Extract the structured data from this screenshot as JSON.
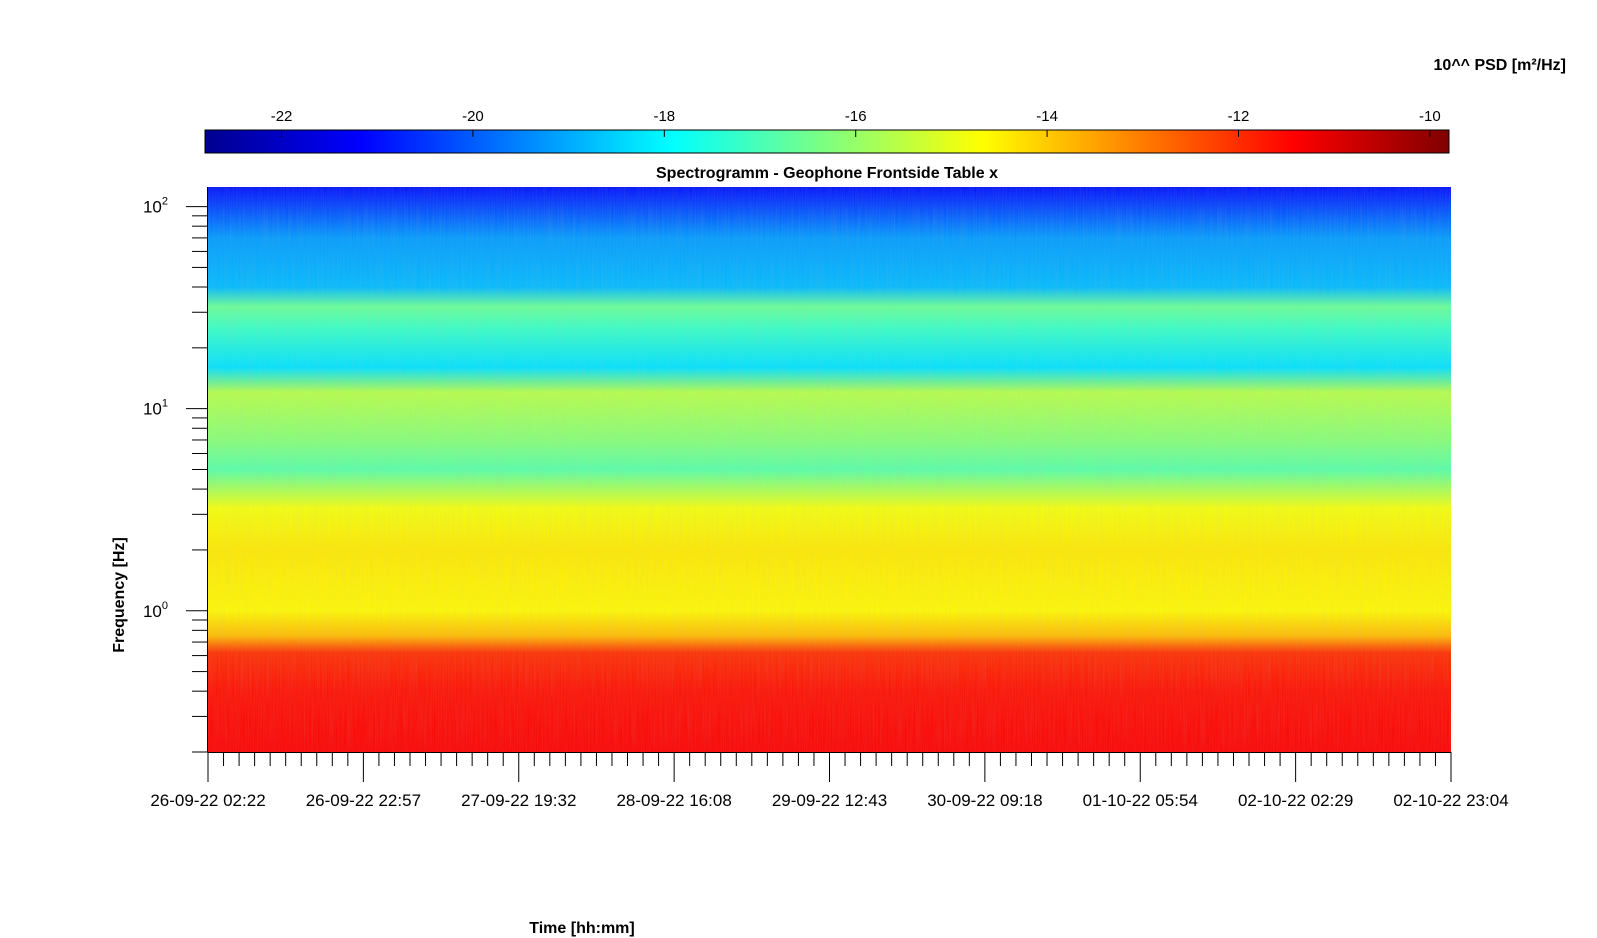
{
  "chart_data": {
    "type": "heatmap",
    "title": "Spectrogramm - Geophone Frontside Table x",
    "xlabel": "Time [hh:mm]",
    "ylabel": "Frequency [Hz]",
    "colorbar": {
      "label": "10^^ PSD [m²/Hz]",
      "ticks": [
        -22,
        -20,
        -18,
        -16,
        -14,
        -12,
        -10
      ],
      "tick_labels": [
        "-22",
        "-20",
        "-18",
        "-16",
        "-14",
        "-12",
        "-10"
      ],
      "range": [
        -22.8,
        -9.8
      ],
      "colormap": "jet"
    },
    "x_ticks": [
      "26-09-22 02:22",
      "26-09-22 22:57",
      "27-09-22 19:32",
      "28-09-22 16:08",
      "29-09-22 12:43",
      "30-09-22 09:18",
      "01-10-22 05:54",
      "02-10-22 02:29",
      "02-10-22 23:04"
    ],
    "xlim": [
      "26-09-22 02:22",
      "02-10-22 23:04"
    ],
    "y_scale": "log",
    "y_ticks": [
      1,
      10,
      100
    ],
    "y_tick_labels": [
      {
        "base": "10",
        "exp": "0"
      },
      {
        "base": "10",
        "exp": "1"
      },
      {
        "base": "10",
        "exp": "2"
      }
    ],
    "ylim": [
      0.2,
      125
    ],
    "frequency_profile": [
      {
        "f": 0.2,
        "psd": -11.4
      },
      {
        "f": 0.4,
        "psd": -11.6
      },
      {
        "f": 0.62,
        "psd": -12.0
      },
      {
        "f": 0.75,
        "psd": -13.8
      },
      {
        "f": 1.0,
        "psd": -14.6
      },
      {
        "f": 2.0,
        "psd": -14.4
      },
      {
        "f": 3.2,
        "psd": -14.8
      },
      {
        "f": 5.0,
        "psd": -16.8
      },
      {
        "f": 7.0,
        "psd": -16.2
      },
      {
        "f": 12.0,
        "psd": -15.6
      },
      {
        "f": 16.0,
        "psd": -18.3
      },
      {
        "f": 25.0,
        "psd": -17.2
      },
      {
        "f": 32.0,
        "psd": -16.6
      },
      {
        "f": 40.0,
        "psd": -18.8
      },
      {
        "f": 70.0,
        "psd": -19.2
      },
      {
        "f": 125.0,
        "psd": -21.0
      }
    ],
    "grid": false
  }
}
